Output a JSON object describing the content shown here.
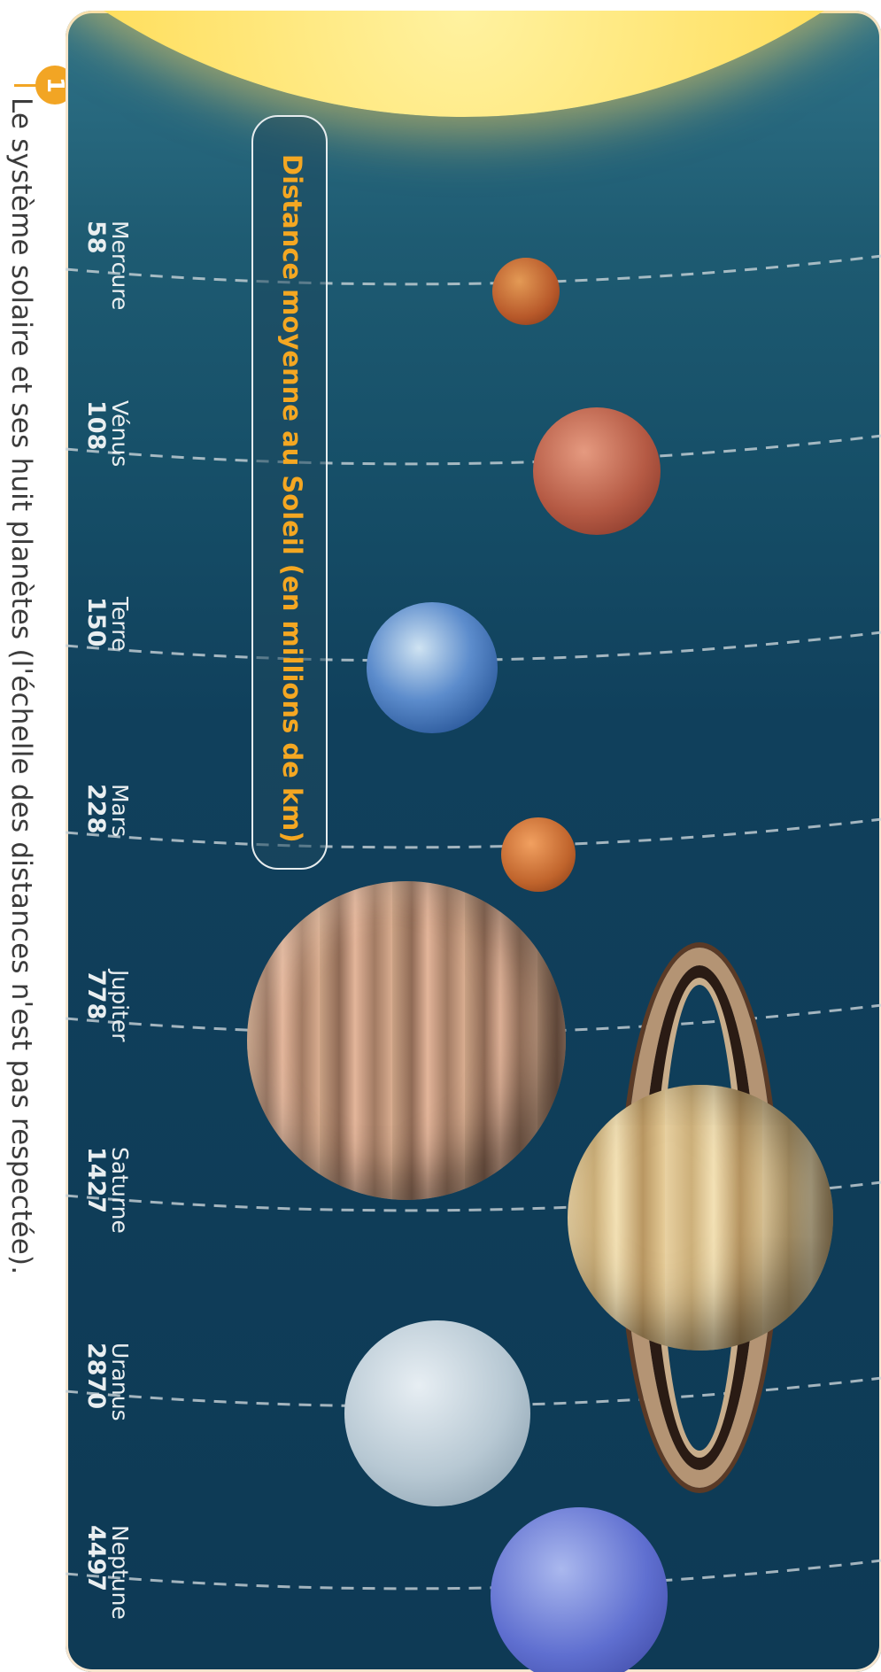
{
  "figure": {
    "number": "1",
    "caption": "Le système solaire et ses huit planètes (l'échelle des distances n'est pas respectée).",
    "title": "Distance moyenne au Soleil (en millions de km)"
  },
  "planets": [
    {
      "name": "Mercure",
      "distance": "58",
      "color": "#c46a34"
    },
    {
      "name": "Vénus",
      "distance": "108",
      "color": "#b55a44"
    },
    {
      "name": "Terre",
      "distance": "150",
      "color": "#4f7fc2"
    },
    {
      "name": "Mars",
      "distance": "228",
      "color": "#c8692e"
    },
    {
      "name": "Jupiter",
      "distance": "778",
      "color": "#b98a70"
    },
    {
      "name": "Saturne",
      "distance": "1427",
      "color": "#d9bd88"
    },
    {
      "name": "Uranus",
      "distance": "2870",
      "color": "#b7c8d3"
    },
    {
      "name": "Neptune",
      "distance": "4497",
      "color": "#5f6fd0"
    }
  ],
  "colors": {
    "panel_background": "#0e3a55",
    "title_text": "#f4a722",
    "badge": "#f2a524",
    "label_text": "#e9eef0",
    "orbit_line": "#c9d3d8"
  },
  "icons": {
    "sun": "sun",
    "badge": "figure-number-badge"
  }
}
